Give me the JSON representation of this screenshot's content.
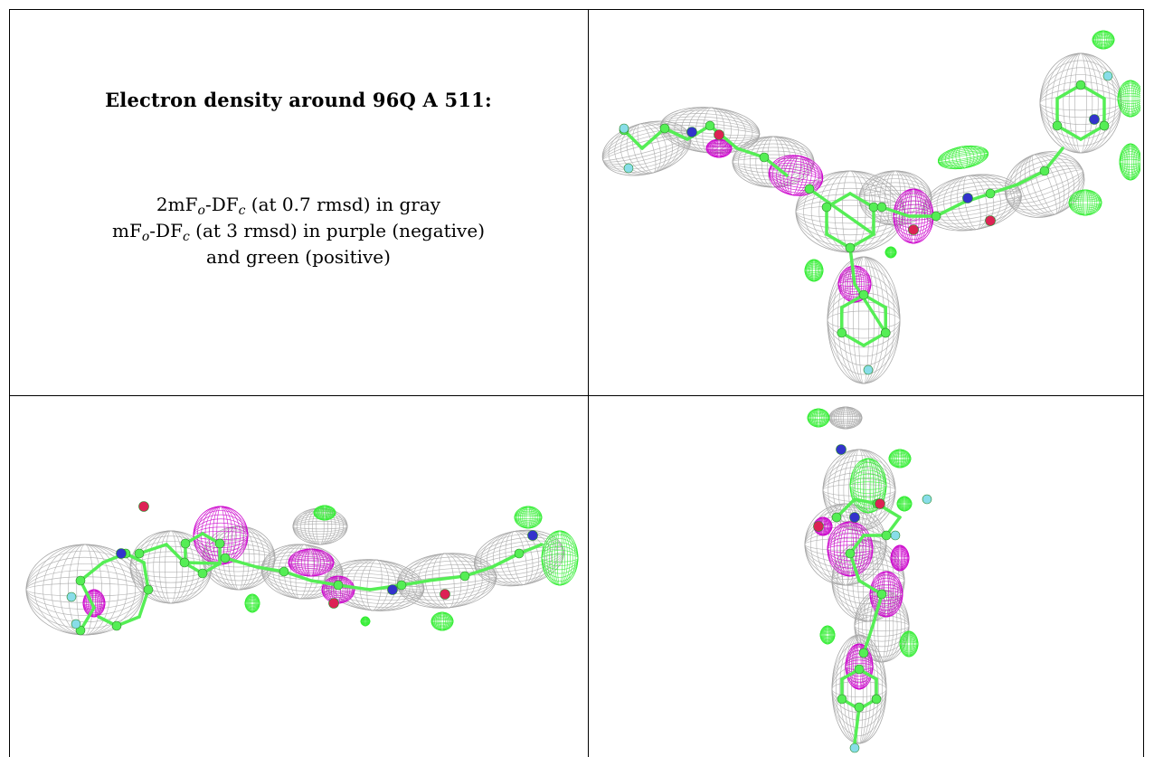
{
  "caption": {
    "title": "Electron density around 96Q A 511:",
    "line1": {
      "pre": "2mF",
      "sub1": "o",
      "mid": "-DF",
      "sub2": "c",
      "post": " (at 0.7 rmsd) in gray"
    },
    "line2": {
      "pre": "mF",
      "sub1": "o",
      "mid": "-DF",
      "sub2": "c",
      "post": " (at 3 rmsd) in purple (negative)"
    },
    "line3": "and green (positive)"
  },
  "colors": {
    "mesh_gray": "#a8a8a8",
    "negative_purple": "#cc00cc",
    "positive_green": "#33ee33",
    "carbon": "#55ee55",
    "nitrogen": "#3333cc",
    "oxygen": "#dd2255",
    "fluorine": "#88dde8"
  },
  "panels": [
    {
      "view": "top-right"
    },
    {
      "view": "bottom-left"
    },
    {
      "view": "bottom-right"
    }
  ]
}
